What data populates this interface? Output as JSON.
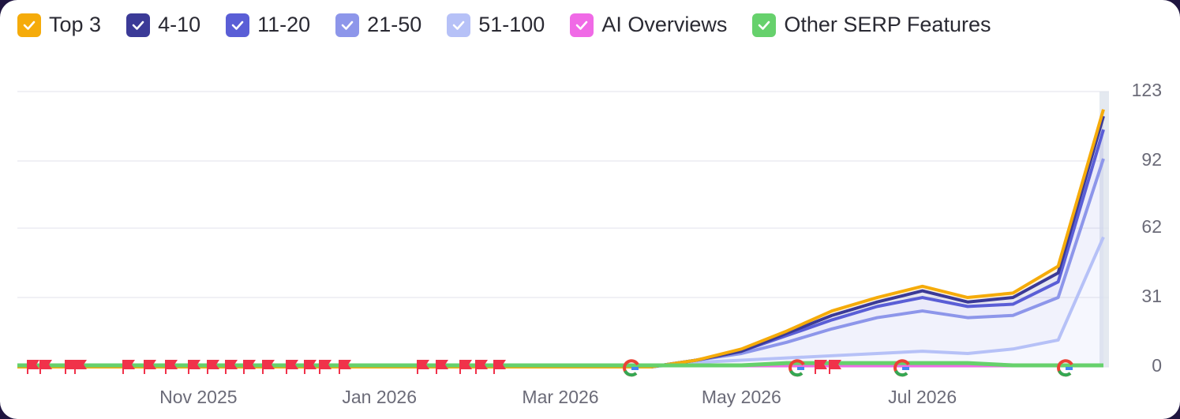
{
  "chart_data": {
    "type": "area",
    "categories": [
      null,
      null,
      null,
      null,
      "Nov 2025",
      null,
      null,
      null,
      "Jan 2026",
      null,
      null,
      null,
      "Mar 2026",
      null,
      null,
      null,
      "May 2026",
      null,
      null,
      null,
      "Jul 2026",
      null,
      null,
      null,
      null
    ],
    "series": [
      {
        "name": "Top 3",
        "color": "#f5ab0a",
        "type": "area",
        "values": [
          0,
          0,
          0,
          0,
          0,
          0,
          0,
          0,
          0,
          0,
          0,
          0,
          0,
          0,
          0,
          0,
          1,
          1,
          2,
          2,
          2,
          2,
          2,
          3,
          3
        ]
      },
      {
        "name": "4-10",
        "color": "#3b3a97",
        "type": "area",
        "values": [
          0,
          0,
          0,
          0,
          0,
          0,
          0,
          0,
          0,
          0,
          0,
          0,
          0,
          0,
          0,
          0,
          0,
          1,
          2,
          2,
          3,
          2,
          3,
          4,
          6
        ]
      },
      {
        "name": "11-20",
        "color": "#5a5ed6",
        "type": "area",
        "values": [
          0,
          0,
          0,
          0,
          0,
          0,
          0,
          0,
          0,
          0,
          0,
          0,
          0,
          0,
          0,
          0,
          1,
          3,
          4,
          5,
          6,
          5,
          5,
          7,
          13
        ]
      },
      {
        "name": "21-50",
        "color": "#8d96ea",
        "type": "area",
        "values": [
          0,
          0,
          0,
          0,
          0,
          0,
          0,
          0,
          0,
          0,
          0,
          0,
          0,
          0,
          0,
          1,
          3,
          7,
          12,
          16,
          18,
          16,
          15,
          19,
          35
        ]
      },
      {
        "name": "51-100",
        "color": "#b6c1f7",
        "type": "area",
        "values": [
          0,
          0,
          0,
          0,
          0,
          0,
          0,
          0,
          0,
          0,
          0,
          0,
          0,
          0,
          0,
          2,
          3,
          4,
          5,
          6,
          7,
          6,
          8,
          12,
          58
        ]
      },
      {
        "name": "AI Overviews",
        "color": "#f06ae6",
        "type": "line",
        "values": [
          0,
          0,
          0,
          0,
          0,
          0,
          0,
          0,
          0,
          0,
          0,
          0,
          0,
          0,
          0,
          0,
          0,
          0,
          0,
          0,
          0,
          0,
          0,
          0,
          0
        ]
      },
      {
        "name": "Other SERP Features",
        "color": "#66d16c",
        "type": "line",
        "values": [
          0,
          0,
          0,
          0,
          0,
          0,
          0,
          0,
          0,
          0,
          0,
          0,
          0,
          0,
          0,
          0,
          0,
          1,
          1,
          1,
          1,
          1,
          0,
          0,
          0
        ]
      }
    ],
    "ylim": [
      0,
      123
    ],
    "yticks": [
      0,
      31,
      62,
      92,
      123
    ],
    "grid": true
  }
}
